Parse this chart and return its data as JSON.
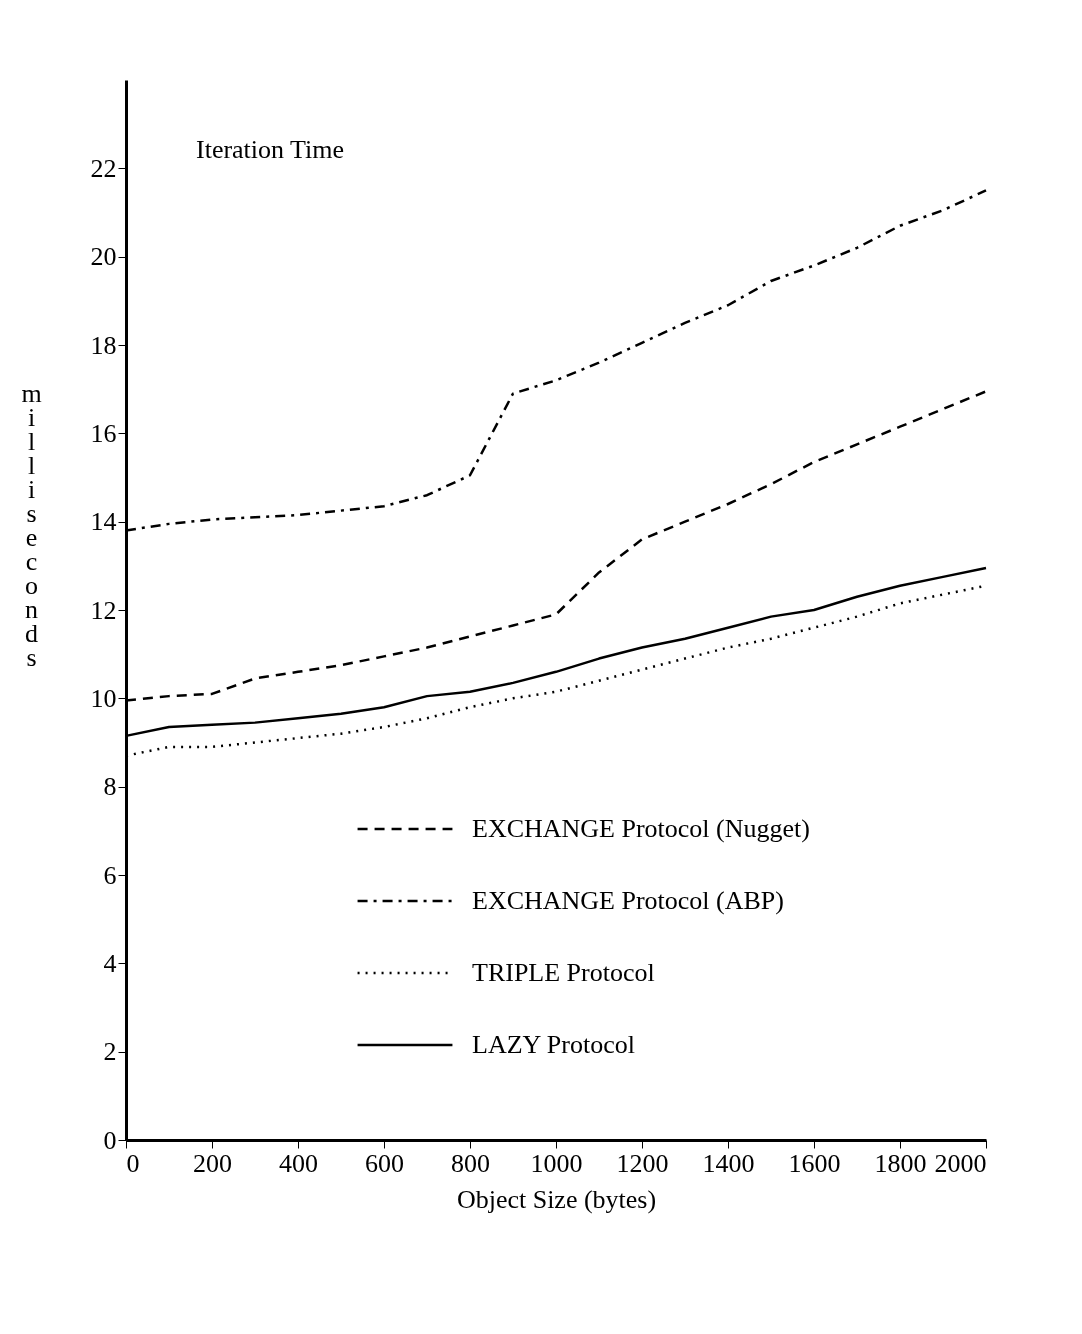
{
  "chart_data": {
    "type": "line",
    "title": "Iteration Time",
    "xlabel": "Object Size (bytes)",
    "ylabel": "milliseconds",
    "x": [
      0,
      100,
      200,
      300,
      400,
      500,
      600,
      700,
      800,
      900,
      1000,
      1100,
      1200,
      1300,
      1400,
      1500,
      1600,
      1700,
      1800,
      1900,
      2000
    ],
    "series": [
      {
        "name": "EXCHANGE Protocol (Nugget)",
        "color": "#000000",
        "line_style": "dashed",
        "values": [
          9.95,
          10.05,
          10.1,
          10.45,
          10.6,
          10.75,
          10.95,
          11.15,
          11.4,
          11.65,
          11.9,
          12.85,
          13.6,
          14.0,
          14.4,
          14.85,
          15.35,
          15.75,
          16.15,
          16.55,
          16.95
        ]
      },
      {
        "name": "EXCHANGE Protocol (ABP)",
        "color": "#000000",
        "line_style": "dashdot",
        "values": [
          13.8,
          13.95,
          14.05,
          14.1,
          14.15,
          14.25,
          14.35,
          14.6,
          15.05,
          16.9,
          17.2,
          17.6,
          18.05,
          18.5,
          18.9,
          19.45,
          19.8,
          20.2,
          20.7,
          21.05,
          21.5
        ]
      },
      {
        "name": "TRIPLE Protocol",
        "color": "#000000",
        "line_style": "dotted",
        "values": [
          8.7,
          8.9,
          8.9,
          9.0,
          9.1,
          9.2,
          9.35,
          9.55,
          9.8,
          10.0,
          10.15,
          10.4,
          10.65,
          10.9,
          11.15,
          11.35,
          11.6,
          11.85,
          12.15,
          12.35,
          12.55
        ]
      },
      {
        "name": "LAZY Protocol",
        "color": "#000000",
        "line_style": "solid",
        "values": [
          9.15,
          9.35,
          9.4,
          9.45,
          9.55,
          9.65,
          9.8,
          10.05,
          10.15,
          10.35,
          10.6,
          10.9,
          11.15,
          11.35,
          11.6,
          11.85,
          12.0,
          12.3,
          12.55,
          12.75,
          12.95
        ]
      }
    ],
    "xlim": [
      0,
      2000
    ],
    "xticks": [
      0,
      200,
      400,
      600,
      800,
      1000,
      1200,
      1400,
      1600,
      1800,
      2000
    ],
    "ylim": [
      0,
      24
    ],
    "yticks": [
      0,
      2,
      4,
      6,
      8,
      10,
      12,
      14,
      16,
      18,
      20,
      22
    ],
    "grid": false,
    "legend": "bottom right",
    "marker": "none"
  }
}
